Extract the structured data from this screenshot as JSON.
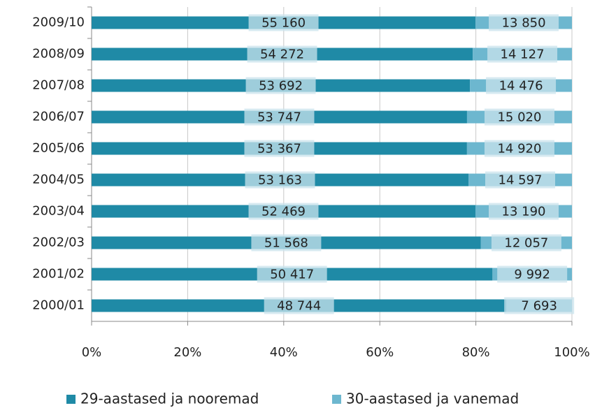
{
  "chart_data": {
    "type": "bar",
    "orientation": "horizontal",
    "stacked": "percent",
    "categories": [
      "2009/10",
      "2008/09",
      "2007/08",
      "2006/07",
      "2005/06",
      "2004/05",
      "2003/04",
      "2002/03",
      "2001/02",
      "2000/01"
    ],
    "series": [
      {
        "name": "29-aastased ja nooremad",
        "color": "#1f8aa6",
        "values": [
          55160,
          54272,
          53692,
          53747,
          53367,
          53163,
          52469,
          51568,
          50417,
          48744
        ],
        "value_labels": [
          "55 160",
          "54 272",
          "53 692",
          "53 747",
          "53 367",
          "53 163",
          "52 469",
          "51 568",
          "50 417",
          "48 744"
        ]
      },
      {
        "name": "30-aastased ja vanemad",
        "color": "#6db7cf",
        "values": [
          13850,
          14127,
          14476,
          15020,
          14920,
          14597,
          13190,
          12057,
          9992,
          7693
        ],
        "value_labels": [
          "13 850",
          "14 127",
          "14 476",
          "15 020",
          "14 920",
          "14 597",
          "13 190",
          "12 057",
          "9 992",
          "7 693"
        ]
      }
    ],
    "xlim": [
      0,
      100
    ],
    "xticks": [
      {
        "value": 0,
        "label": "0%"
      },
      {
        "value": 20,
        "label": "20%"
      },
      {
        "value": 40,
        "label": "40%"
      },
      {
        "value": 60,
        "label": "60%"
      },
      {
        "value": 80,
        "label": "80%"
      },
      {
        "value": 100,
        "label": "100%"
      }
    ],
    "grid": true,
    "legend": "bottom"
  }
}
